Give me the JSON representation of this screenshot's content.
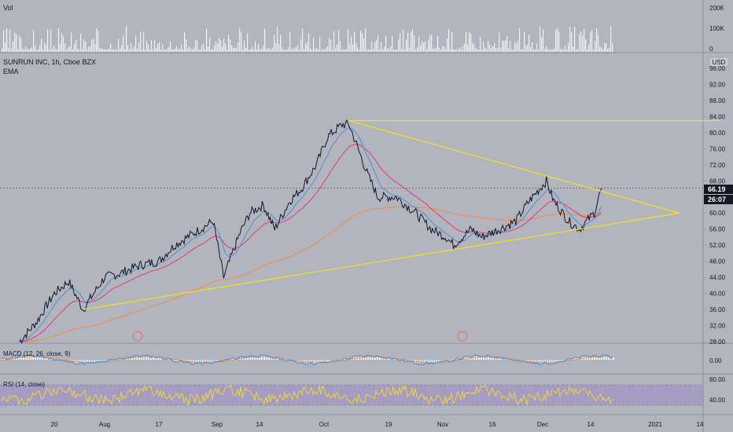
{
  "header": {
    "symbol_line": "SUNRUN INC, 1h, Cboe BZX",
    "indicator": "EMA",
    "currency": "USD"
  },
  "volume_pane": {
    "label": "Vol",
    "ticks": [
      "200K",
      "100K",
      "0"
    ]
  },
  "price_axis": {
    "ticks": [
      "96.00",
      "92.00",
      "88.00",
      "84.00",
      "80.00",
      "76.00",
      "72.00",
      "68.00",
      "64.00",
      "60.00",
      "56.00",
      "52.00",
      "48.00",
      "44.00",
      "40.00",
      "36.00",
      "32.00",
      "28.00"
    ],
    "ylim": [
      28,
      96
    ],
    "last_price": "66.19",
    "countdown": "26:07"
  },
  "macd_pane": {
    "label": "MACD (12, 26, close, 9)",
    "ticks": [
      "0.00"
    ]
  },
  "rsi_pane": {
    "label": "RSI (14, close)",
    "ticks": [
      "80.00",
      "40.00"
    ]
  },
  "time_axis": {
    "ticks": [
      "20",
      "Aug",
      "17",
      "Sep",
      "14",
      "Oct",
      "19",
      "Nov",
      "16",
      "Dec",
      "14",
      "2021",
      "14"
    ]
  },
  "colors": {
    "background": "#b2b5be",
    "price_line": "#131722",
    "ema_fast": "#4e8fd6",
    "ema_mid": "#e0397b",
    "ema_slow": "#f28b3c",
    "trendline": "#f5e31a",
    "rsi_line": "#f0d63a",
    "rsi_band": "#9b86c4",
    "macd_line": "#3b8fe0",
    "signal_line": "#f28b3c",
    "last_price_tag": "#131722"
  },
  "chart_data": {
    "type": "line",
    "series": [
      {
        "name": "SUNRUN INC",
        "x": [
          "Jul 10",
          "Jul 15",
          "Jul 20",
          "Jul 24",
          "Jul 28",
          "Aug 3",
          "Aug 7",
          "Aug 12",
          "Aug 17",
          "Aug 21",
          "Aug 26",
          "Aug 31",
          "Sep 3",
          "Sep 8",
          "Sep 11",
          "Sep 15",
          "Sep 18",
          "Sep 22",
          "Sep 25",
          "Sep 29",
          "Oct 2",
          "Oct 6",
          "Oct 8",
          "Oct 13",
          "Oct 16",
          "Oct 21",
          "Oct 26",
          "Oct 30",
          "Nov 3",
          "Nov 5",
          "Nov 10",
          "Nov 13",
          "Nov 18",
          "Nov 23",
          "Nov 27",
          "Dec 2",
          "Dec 4",
          "Dec 8",
          "Dec 11",
          "Dec 15",
          "Dec 17"
        ],
        "values": [
          28,
          33,
          40,
          43,
          36,
          44,
          45,
          47,
          48,
          52,
          55,
          58,
          44,
          55,
          60,
          62,
          56,
          63,
          66,
          72,
          79,
          82,
          82,
          70,
          64,
          64,
          60,
          56,
          54,
          52,
          56,
          54,
          56,
          58,
          63,
          68,
          63,
          58,
          56,
          60,
          66.19
        ]
      }
    ],
    "trendlines": [
      {
        "from": [
          "Jul 28",
          36
        ],
        "to": [
          "Jan 8",
          60
        ]
      },
      {
        "from": [
          "Oct 8",
          83
        ],
        "to": [
          "Jan 8",
          60
        ]
      },
      {
        "from": [
          "Oct 8",
          83
        ],
        "to": [
          "Jan 20",
          83
        ]
      }
    ],
    "xlabel": "",
    "ylabel": "",
    "grid": false,
    "legend": "none"
  }
}
